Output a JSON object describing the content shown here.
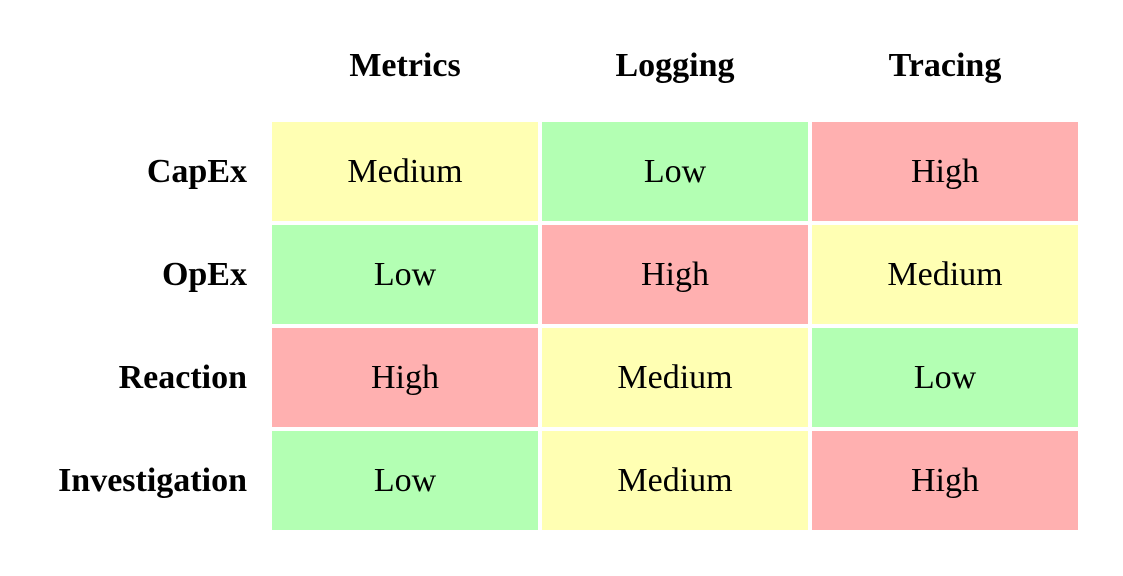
{
  "colors": {
    "Low": "#b3ffb3",
    "Medium": "#ffffb3",
    "High": "#ffb0b0"
  },
  "chart_data": {
    "type": "heatmap",
    "columns": [
      "Metrics",
      "Logging",
      "Tracing"
    ],
    "rows": [
      "CapEx",
      "OpEx",
      "Reaction",
      "Investigation"
    ],
    "values": [
      [
        "Medium",
        "Low",
        "High"
      ],
      [
        "Low",
        "High",
        "Medium"
      ],
      [
        "High",
        "Medium",
        "Low"
      ],
      [
        "Low",
        "Medium",
        "High"
      ]
    ],
    "legend": "none"
  }
}
